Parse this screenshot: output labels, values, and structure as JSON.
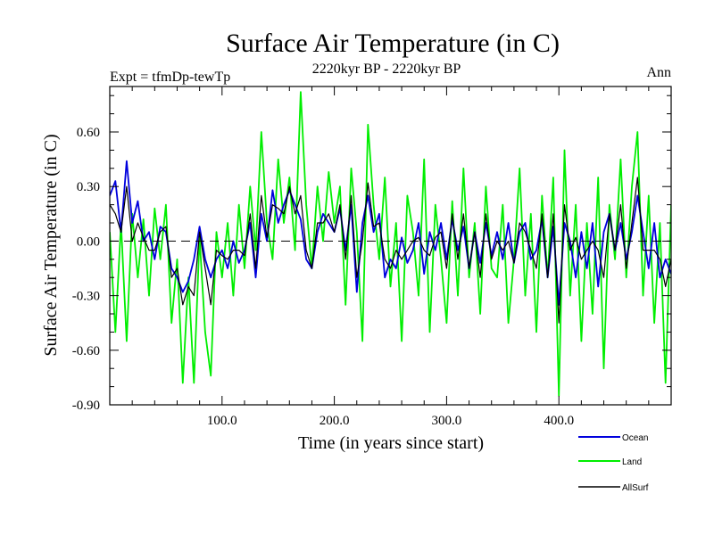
{
  "chart_data": {
    "type": "line",
    "title": "Surface Air Temperature (in C)",
    "subtitle": "2220kyr BP - 2220kyr BP",
    "left_annotation": "Expt = tfmDp-tewTp",
    "right_annotation": "Ann",
    "xlabel": "Time (in years since start)",
    "ylabel": "Surface Air Temperature (in C)",
    "xlim": [
      0,
      500
    ],
    "ylim": [
      -0.9,
      0.85
    ],
    "xticks": [
      {
        "value": 100,
        "label": "100.0"
      },
      {
        "value": 200,
        "label": "200.0"
      },
      {
        "value": 300,
        "label": "300.0"
      },
      {
        "value": 400,
        "label": "400.0"
      }
    ],
    "yticks": [
      {
        "value": 0.6,
        "label": "0.60"
      },
      {
        "value": 0.3,
        "label": "0.30"
      },
      {
        "value": 0.0,
        "label": "0.00"
      },
      {
        "value": -0.3,
        "label": "-0.30"
      },
      {
        "value": -0.6,
        "label": "-0.60"
      },
      {
        "value": -0.9,
        "label": "-0.90"
      }
    ],
    "zero_line": true,
    "legend_position": "bottom-right",
    "series": [
      {
        "name": "Land",
        "color": "#00ee00",
        "x": [
          0,
          5,
          10,
          15,
          20,
          25,
          30,
          35,
          40,
          45,
          50,
          55,
          60,
          65,
          70,
          75,
          80,
          85,
          90,
          95,
          100,
          105,
          110,
          115,
          120,
          125,
          130,
          135,
          140,
          145,
          150,
          155,
          160,
          165,
          170,
          175,
          180,
          185,
          190,
          195,
          200,
          205,
          210,
          215,
          220,
          225,
          230,
          235,
          240,
          245,
          250,
          255,
          260,
          265,
          270,
          275,
          280,
          285,
          290,
          295,
          300,
          305,
          310,
          315,
          320,
          325,
          330,
          335,
          340,
          345,
          350,
          355,
          360,
          365,
          370,
          375,
          380,
          385,
          390,
          395,
          400,
          405,
          410,
          415,
          420,
          425,
          430,
          435,
          440,
          445,
          450,
          455,
          460,
          465,
          470,
          475,
          480,
          485,
          490,
          495,
          500
        ],
        "values": [
          0.05,
          -0.5,
          0.1,
          -0.55,
          0.15,
          -0.2,
          0.12,
          -0.3,
          0.18,
          -0.1,
          0.2,
          -0.45,
          -0.1,
          -0.78,
          -0.2,
          -0.78,
          0.02,
          -0.5,
          -0.74,
          0.05,
          -0.2,
          0.1,
          -0.3,
          0.2,
          -0.15,
          0.3,
          -0.05,
          0.6,
          0.1,
          -0.1,
          0.45,
          0.1,
          0.35,
          -0.05,
          0.82,
          0.2,
          -0.15,
          0.3,
          0.0,
          0.38,
          0.1,
          0.3,
          -0.35,
          0.4,
          0.05,
          -0.55,
          0.64,
          0.2,
          -0.1,
          0.35,
          -0.25,
          0.1,
          -0.55,
          0.25,
          0.05,
          -0.3,
          0.45,
          -0.5,
          0.2,
          -0.1,
          -0.45,
          0.22,
          -0.3,
          0.4,
          -0.2,
          0.1,
          -0.4,
          0.3,
          -0.15,
          -0.2,
          0.2,
          -0.45,
          -0.1,
          0.4,
          -0.3,
          0.15,
          -0.5,
          0.25,
          -0.2,
          0.35,
          -0.85,
          0.5,
          -0.3,
          0.2,
          -0.55,
          0.1,
          -0.4,
          0.35,
          -0.7,
          0.2,
          -0.1,
          0.45,
          -0.2,
          0.3,
          0.6,
          -0.3,
          0.25,
          -0.45,
          0.1,
          -0.78,
          0.2
        ]
      },
      {
        "name": "Ocean",
        "color": "#0000dd",
        "x": [
          0,
          5,
          10,
          15,
          20,
          25,
          30,
          35,
          40,
          45,
          50,
          55,
          60,
          65,
          70,
          75,
          80,
          85,
          90,
          95,
          100,
          105,
          110,
          115,
          120,
          125,
          130,
          135,
          140,
          145,
          150,
          155,
          160,
          165,
          170,
          175,
          180,
          185,
          190,
          195,
          200,
          205,
          210,
          215,
          220,
          225,
          230,
          235,
          240,
          245,
          250,
          255,
          260,
          265,
          270,
          275,
          280,
          285,
          290,
          295,
          300,
          305,
          310,
          315,
          320,
          325,
          330,
          335,
          340,
          345,
          350,
          355,
          360,
          365,
          370,
          375,
          380,
          385,
          390,
          395,
          400,
          405,
          410,
          415,
          420,
          425,
          430,
          435,
          440,
          445,
          450,
          455,
          460,
          465,
          470,
          475,
          480,
          485,
          490,
          495,
          500
        ],
        "values": [
          0.25,
          0.33,
          0.05,
          0.44,
          0.1,
          0.22,
          0.0,
          0.05,
          -0.1,
          0.08,
          0.05,
          -0.15,
          -0.2,
          -0.28,
          -0.22,
          -0.1,
          0.08,
          -0.1,
          -0.2,
          -0.1,
          -0.05,
          -0.15,
          0.0,
          -0.12,
          -0.05,
          0.1,
          -0.2,
          0.15,
          0.0,
          0.28,
          0.1,
          0.2,
          0.28,
          0.2,
          0.12,
          -0.1,
          -0.15,
          0.05,
          0.15,
          0.1,
          0.05,
          0.18,
          -0.05,
          0.2,
          -0.28,
          0.1,
          0.25,
          0.05,
          0.15,
          -0.2,
          -0.1,
          -0.15,
          0.02,
          -0.12,
          -0.05,
          0.1,
          -0.18,
          0.05,
          -0.05,
          0.1,
          -0.1,
          0.12,
          -0.05,
          0.08,
          -0.15,
          0.05,
          -0.12,
          0.1,
          -0.08,
          0.05,
          -0.1,
          0.1,
          -0.12,
          0.05,
          0.1,
          -0.1,
          -0.05,
          0.12,
          -0.2,
          0.08,
          -0.35,
          0.1,
          0.0,
          -0.2,
          0.05,
          -0.15,
          0.1,
          -0.25,
          0.05,
          0.15,
          -0.05,
          0.1,
          -0.1,
          0.05,
          0.25,
          0.05,
          -0.15,
          0.1,
          -0.2,
          -0.1,
          -0.18
        ]
      },
      {
        "name": "AllSurf",
        "color": "#000000",
        "x": [
          0,
          5,
          10,
          15,
          20,
          25,
          30,
          35,
          40,
          45,
          50,
          55,
          60,
          65,
          70,
          75,
          80,
          85,
          90,
          95,
          100,
          105,
          110,
          115,
          120,
          125,
          130,
          135,
          140,
          145,
          150,
          155,
          160,
          165,
          170,
          175,
          180,
          185,
          190,
          195,
          200,
          205,
          210,
          215,
          220,
          225,
          230,
          235,
          240,
          245,
          250,
          255,
          260,
          265,
          270,
          275,
          280,
          285,
          290,
          295,
          300,
          305,
          310,
          315,
          320,
          325,
          330,
          335,
          340,
          345,
          350,
          355,
          360,
          365,
          370,
          375,
          380,
          385,
          390,
          395,
          400,
          405,
          410,
          415,
          420,
          425,
          430,
          435,
          440,
          445,
          450,
          455,
          460,
          465,
          470,
          475,
          480,
          485,
          490,
          495,
          500
        ],
        "values": [
          0.2,
          0.15,
          0.05,
          0.3,
          0.0,
          0.1,
          0.02,
          -0.05,
          -0.05,
          0.05,
          0.08,
          -0.2,
          -0.15,
          -0.35,
          -0.25,
          -0.3,
          0.05,
          -0.15,
          -0.35,
          -0.05,
          -0.08,
          -0.1,
          -0.05,
          -0.05,
          -0.08,
          0.15,
          -0.15,
          0.25,
          0.02,
          0.2,
          0.18,
          0.15,
          0.3,
          0.15,
          0.25,
          -0.05,
          -0.15,
          0.1,
          0.1,
          0.15,
          0.05,
          0.2,
          -0.1,
          0.25,
          -0.2,
          0.0,
          0.32,
          0.08,
          0.1,
          -0.1,
          -0.15,
          -0.05,
          -0.1,
          -0.05,
          0.0,
          0.02,
          -0.05,
          -0.08,
          0.02,
          0.05,
          -0.15,
          0.15,
          -0.1,
          0.15,
          -0.15,
          0.05,
          -0.2,
          0.15,
          -0.1,
          0.0,
          -0.05,
          0.0,
          -0.12,
          0.1,
          0.05,
          -0.05,
          -0.15,
          0.15,
          -0.2,
          0.15,
          -0.45,
          0.2,
          -0.05,
          0.02,
          -0.1,
          -0.05,
          0.0,
          -0.05,
          -0.2,
          0.15,
          -0.05,
          0.2,
          -0.15,
          0.1,
          0.35,
          -0.05,
          -0.05,
          -0.05,
          -0.1,
          -0.25,
          -0.1
        ]
      }
    ],
    "legend_order": [
      "Ocean",
      "Land",
      "AllSurf"
    ]
  }
}
